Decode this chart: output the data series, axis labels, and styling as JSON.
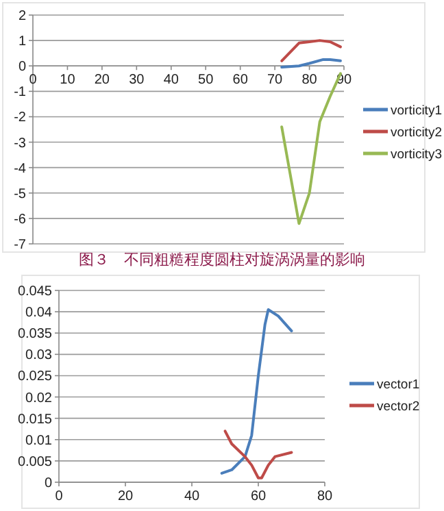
{
  "chart_data": [
    {
      "type": "line",
      "xlim": [
        0,
        90
      ],
      "ylim": [
        -7,
        2
      ],
      "xticks": [
        0,
        10,
        20,
        30,
        40,
        50,
        60,
        70,
        80,
        90
      ],
      "yticks": [
        -7,
        -6,
        -5,
        -4,
        -3,
        -2,
        -1,
        0,
        1,
        2
      ],
      "grid": "y",
      "legend": "right",
      "series": [
        {
          "name": "vorticity1",
          "color": "#4a7ebb",
          "x": [
            72,
            77,
            80,
            84,
            86,
            89
          ],
          "values": [
            -0.05,
            0,
            0.1,
            0.25,
            0.25,
            0.2
          ]
        },
        {
          "name": "vorticity2",
          "color": "#be4b48",
          "x": [
            72,
            77,
            80,
            83,
            86,
            89
          ],
          "values": [
            0.2,
            0.9,
            0.95,
            1.0,
            0.95,
            0.75
          ]
        },
        {
          "name": "vorticity3",
          "color": "#98b954",
          "x": [
            72,
            77,
            80,
            83,
            86,
            89
          ],
          "values": [
            -2.4,
            -6.2,
            -5,
            -2.2,
            -1.2,
            -0.3
          ]
        }
      ],
      "annotations": [
        "图３　不同粗糙程度圆柱对旋涡涡量的影响"
      ]
    },
    {
      "type": "line",
      "xlim": [
        0,
        80
      ],
      "ylim": [
        0,
        0.045
      ],
      "xticks": [
        0,
        20,
        40,
        60,
        80
      ],
      "yticks": [
        0,
        0.005,
        0.01,
        0.015,
        0.02,
        0.025,
        0.03,
        0.035,
        0.04,
        0.045
      ],
      "grid": "y",
      "legend": "right",
      "series": [
        {
          "name": "vector1",
          "color": "#4a7ebb",
          "x": [
            49,
            52,
            56,
            58,
            60,
            62,
            63,
            66,
            70
          ],
          "values": [
            0.0021,
            0.0029,
            0.006,
            0.011,
            0.025,
            0.037,
            0.0405,
            0.039,
            0.0355
          ]
        },
        {
          "name": "vector2",
          "color": "#be4b48",
          "x": [
            50,
            52,
            56,
            58,
            60,
            61,
            63,
            65,
            70
          ],
          "values": [
            0.012,
            0.009,
            0.006,
            0.004,
            0.001,
            0.001,
            0.004,
            0.006,
            0.007
          ]
        }
      ]
    }
  ]
}
